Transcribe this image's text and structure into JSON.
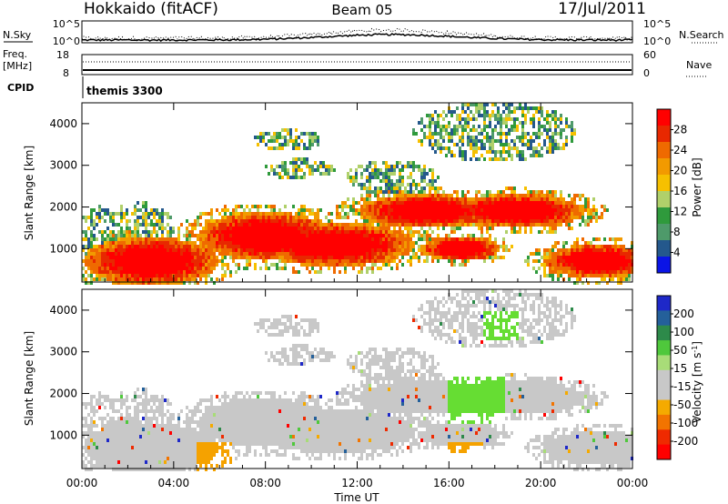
{
  "header": {
    "station": "Hokkaido (fitACF)",
    "beam": "Beam 05",
    "date": "17/Jul/2011"
  },
  "top_strip": {
    "nsky_label": "N.Sky",
    "nsearch_label": "N.Search",
    "noise_ticks_left": [
      "10^5",
      "10^0"
    ],
    "noise_ticks_right": [
      "10^5",
      "10^0"
    ],
    "freq_label_line1": "Freq.",
    "freq_label_line2": "[MHz]",
    "freq_ticks": [
      "18",
      "8"
    ],
    "nave_label": "Nave",
    "nave_ticks": [
      "60",
      "0"
    ],
    "cpid_label": "CPID",
    "cpid_value": "themis 3300"
  },
  "colors": {
    "power_scale": [
      "#0a14e6",
      "#24588c",
      "#4e9a6a",
      "#2f9a3c",
      "#b0d06a",
      "#f6c000",
      "#f29a00",
      "#ef6a00",
      "#e82800",
      "#ff0000"
    ],
    "velocity_scale": [
      "#ff0000",
      "#ef2a00",
      "#f27400",
      "#f5aa00",
      "#c8c8c8",
      "#c8c8c8",
      "#a8dc78",
      "#4fc83c",
      "#2d8a4a",
      "#24609a",
      "#1e28c8"
    ],
    "ground_scatter": "#c8c8c8",
    "velocity_patch": "#66dd33",
    "velocity_orange": "#f5a200"
  },
  "chart_data": [
    {
      "type": "heatmap",
      "name": "power",
      "xlabel": "",
      "ylabel": "Slant Range [km]",
      "x_range_hours": [
        0,
        24
      ],
      "ylim": [
        200,
        4500
      ],
      "y_ticks": [
        1000,
        2000,
        3000,
        4000
      ],
      "colorbar": {
        "label": "Power [dB]",
        "range": [
          0,
          32
        ],
        "ticks": [
          4,
          8,
          12,
          16,
          20,
          24,
          28
        ]
      }
    },
    {
      "type": "heatmap",
      "name": "velocity",
      "xlabel": "Time UT",
      "ylabel": "Slant Range [km]",
      "x_range_hours": [
        0,
        24
      ],
      "x_ticks": [
        "00:00",
        "04:00",
        "08:00",
        "12:00",
        "16:00",
        "20:00",
        "00:00"
      ],
      "ylim": [
        200,
        4500
      ],
      "y_ticks": [
        1000,
        2000,
        3000,
        4000
      ],
      "colorbar": {
        "label": "Velocity [m s^-1]",
        "ticks": [
          200,
          100,
          50,
          15,
          -15,
          -50,
          -100,
          -200
        ]
      }
    }
  ]
}
